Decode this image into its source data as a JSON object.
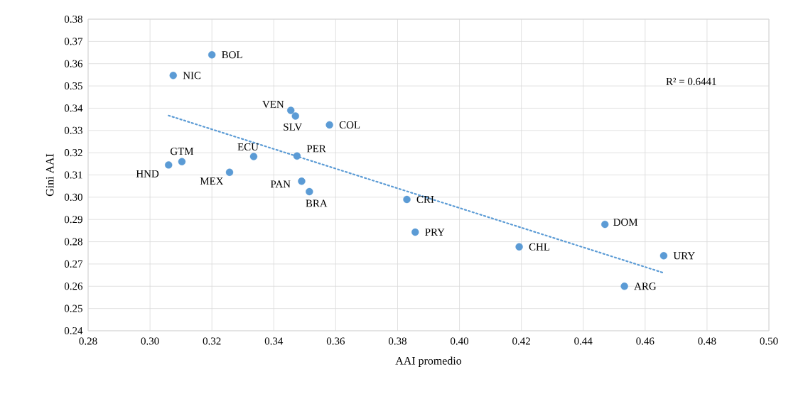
{
  "chart_data": {
    "type": "scatter",
    "xlabel": "AAI promedio",
    "ylabel": "Gini AAI",
    "series": [
      {
        "color": "#5b9bd5",
        "marker": "circle",
        "x": [
          0.32,
          0.3075,
          0.3455,
          0.347,
          0.358,
          0.3335,
          0.3475,
          0.3103,
          0.306,
          0.3257,
          0.349,
          0.3515,
          0.383,
          0.3857,
          0.4193,
          0.447,
          0.466,
          0.4533
        ],
        "values": [
          0.364,
          0.3547,
          0.339,
          0.3365,
          0.3325,
          0.3183,
          0.3185,
          0.316,
          0.3145,
          0.3112,
          0.3072,
          0.3025,
          0.299,
          0.2843,
          0.2777,
          0.2878,
          0.2737,
          0.26
        ]
      },
      {
        "type": "line",
        "color": "#5b9bd5",
        "line_style": "dotted",
        "marker": "none",
        "x": [
          0.306,
          0.466
        ],
        "values": [
          0.3367,
          0.266
        ]
      }
    ],
    "annotations": [
      {
        "text": "BOL",
        "x": 0.32,
        "y": 0.364
      },
      {
        "text": "NIC",
        "x": 0.3075,
        "y": 0.3547
      },
      {
        "text": "VEN",
        "x": 0.3455,
        "y": 0.339
      },
      {
        "text": "SLV",
        "x": 0.347,
        "y": 0.3365
      },
      {
        "text": "COL",
        "x": 0.358,
        "y": 0.3325
      },
      {
        "text": "ECU",
        "x": 0.3335,
        "y": 0.3183
      },
      {
        "text": "PER",
        "x": 0.3475,
        "y": 0.3185
      },
      {
        "text": "GTM",
        "x": 0.3103,
        "y": 0.316
      },
      {
        "text": "HND",
        "x": 0.306,
        "y": 0.3145
      },
      {
        "text": "MEX",
        "x": 0.3257,
        "y": 0.3112
      },
      {
        "text": "PAN",
        "x": 0.349,
        "y": 0.3072
      },
      {
        "text": "BRA",
        "x": 0.3515,
        "y": 0.3025
      },
      {
        "text": "CRI",
        "x": 0.383,
        "y": 0.299
      },
      {
        "text": "PRY",
        "x": 0.3857,
        "y": 0.2843
      },
      {
        "text": "CHL",
        "x": 0.4193,
        "y": 0.2777
      },
      {
        "text": "DOM",
        "x": 0.447,
        "y": 0.2878
      },
      {
        "text": "URY",
        "x": 0.466,
        "y": 0.2737
      },
      {
        "text": "ARG",
        "x": 0.4533,
        "y": 0.26
      },
      "R² = 0.6441"
    ],
    "xlim": [
      0.28,
      0.5
    ],
    "xticks": [
      {
        "value": 0.28,
        "label": "0.28"
      },
      {
        "value": 0.3,
        "label": "0.30"
      },
      {
        "value": 0.32,
        "label": "0.32"
      },
      {
        "value": 0.34,
        "label": "0.34"
      },
      {
        "value": 0.36,
        "label": "0.36"
      },
      {
        "value": 0.38,
        "label": "0.38"
      },
      {
        "value": 0.4,
        "label": "0.40"
      },
      {
        "value": 0.42,
        "label": "0.42"
      },
      {
        "value": 0.44,
        "label": "0.44"
      },
      {
        "value": 0.46,
        "label": "0.46"
      },
      {
        "value": 0.48,
        "label": "0.48"
      },
      {
        "value": 0.5,
        "label": "0.50"
      }
    ],
    "ylim": [
      0.24,
      0.38
    ],
    "yticks": [
      {
        "value": 0.24,
        "label": "0.24"
      },
      {
        "value": 0.25,
        "label": "0.25"
      },
      {
        "value": 0.26,
        "label": "0.26"
      },
      {
        "value": 0.27,
        "label": "0.27"
      },
      {
        "value": 0.28,
        "label": "0.28"
      },
      {
        "value": 0.29,
        "label": "0.29"
      },
      {
        "value": 0.3,
        "label": "0.30"
      },
      {
        "value": 0.31,
        "label": "0.31"
      },
      {
        "value": 0.32,
        "label": "0.32"
      },
      {
        "value": 0.33,
        "label": "0.33"
      },
      {
        "value": 0.34,
        "label": "0.34"
      },
      {
        "value": 0.35,
        "label": "0.35"
      },
      {
        "value": 0.36,
        "label": "0.36"
      },
      {
        "value": 0.37,
        "label": "0.37"
      },
      {
        "value": 0.38,
        "label": "0.38"
      }
    ],
    "grid": true,
    "legend": false
  }
}
